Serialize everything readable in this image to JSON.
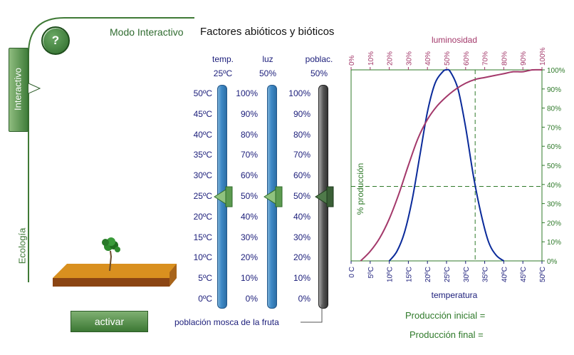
{
  "header": {
    "mode_label": "Modo Interactivo",
    "title": "Factores abióticos y bióticos",
    "help_label": "?"
  },
  "sidebar": {
    "tab_label": "Interactivo",
    "section_label": "Ecología"
  },
  "controls": {
    "activate_label": "activar",
    "fly_population_label": "población mosca de  la  fruta"
  },
  "sliders": [
    {
      "name": "temp.",
      "value_text": "25ºC",
      "value": 25,
      "unit": "ºC",
      "ticks": [
        "50ºC",
        "45ºC",
        "40ºC",
        "35ºC",
        "30ºC",
        "25ºC",
        "20ºC",
        "15ºC",
        "10ºC",
        "5ºC",
        "0ºC"
      ]
    },
    {
      "name": "luz",
      "value_text": "50%",
      "value": 50,
      "unit": "%",
      "ticks": [
        "100%",
        "90%",
        "80%",
        "70%",
        "60%",
        "50%",
        "40%",
        "30%",
        "20%",
        "10%",
        "0%"
      ]
    },
    {
      "name": "poblac.",
      "value_text": "50%",
      "value": 50,
      "unit": "%",
      "ticks": [
        "100%",
        "90%",
        "80%",
        "70%",
        "60%",
        "50%",
        "40%",
        "30%",
        "20%",
        "10%",
        "0%"
      ]
    }
  ],
  "output": {
    "initial_label": "Producción inicial =",
    "final_label": "Producción final ="
  },
  "colors": {
    "brand_green": "#2f6b2f",
    "slider_blue": "#3f8ac7",
    "curve_temp": "#0a2a9a",
    "curve_light": "#a3386a",
    "grid_dashed": "#2f7a2a"
  },
  "chart_data": {
    "type": "line",
    "title": "",
    "xlabel": "temperatura",
    "ylabel": "% producción",
    "x2label": "luminosidad",
    "x_ticks": [
      "0 C",
      "5ºC",
      "10ºC",
      "15ºC",
      "20ºC",
      "25ºC",
      "30ºC",
      "35ºC",
      "40ºC",
      "45ºC",
      "50ºC"
    ],
    "x2_ticks": [
      "0%",
      "10%",
      "20%",
      "30%",
      "40%",
      "50%",
      "60%",
      "70%",
      "80%",
      "90%",
      "100%"
    ],
    "y_ticks": [
      "0%",
      "10%",
      "20%",
      "30%",
      "40%",
      "50%",
      "60%",
      "70%",
      "80%",
      "90%",
      "100%"
    ],
    "xlim": [
      0,
      50
    ],
    "ylim": [
      0,
      100
    ],
    "series": [
      {
        "name": "temperatura",
        "axis": "temperature",
        "x": [
          10,
          12,
          14,
          16,
          18,
          20,
          22,
          24,
          25,
          26,
          28,
          30,
          32,
          34,
          36,
          38,
          40
        ],
        "y": [
          0,
          5,
          15,
          32,
          55,
          78,
          93,
          99,
          100,
          99,
          90,
          70,
          45,
          25,
          10,
          3,
          0
        ]
      },
      {
        "name": "luminosidad",
        "axis": "light",
        "x": [
          5,
          10,
          15,
          20,
          25,
          30,
          35,
          40,
          45,
          50,
          55,
          60,
          65,
          70,
          75,
          80,
          85,
          90,
          95,
          100
        ],
        "y": [
          0,
          5,
          12,
          22,
          35,
          50,
          64,
          74,
          81,
          86,
          90,
          93,
          95,
          96,
          97,
          98,
          99,
          99,
          100,
          100
        ]
      }
    ],
    "guides": {
      "light_value": 65,
      "production_value": 39
    }
  }
}
